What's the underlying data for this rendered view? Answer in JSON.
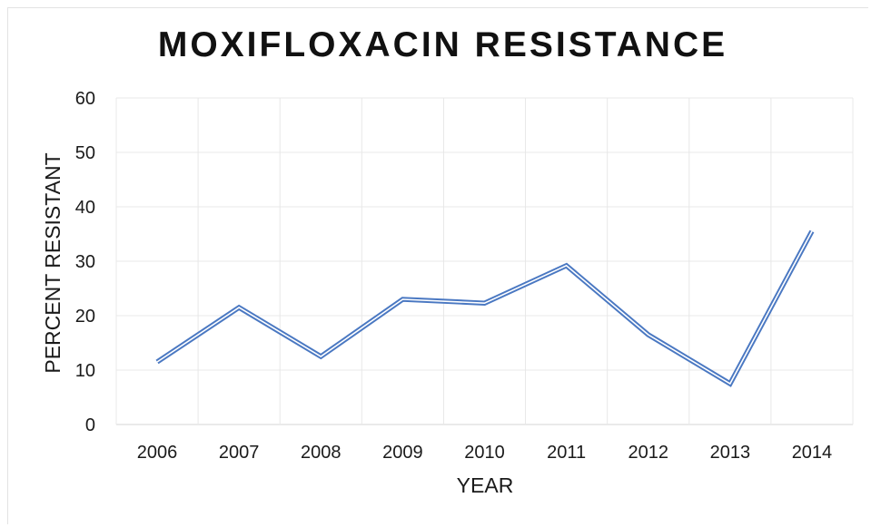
{
  "chart_data": {
    "type": "line",
    "title": "MOXIFLOXACIN RESISTANCE",
    "xlabel": "YEAR",
    "ylabel": "PERCENT RESISTANT",
    "categories": [
      "2006",
      "2007",
      "2008",
      "2009",
      "2010",
      "2011",
      "2012",
      "2013",
      "2014"
    ],
    "y_ticks": [
      "0",
      "10",
      "20",
      "30",
      "40",
      "50",
      "60"
    ],
    "ylim": [
      0,
      60
    ],
    "grid": true,
    "series": [
      {
        "values": [
          11.5,
          21.5,
          12.5,
          23,
          22.3,
          29.2,
          16.5,
          7.5,
          35.5
        ]
      }
    ],
    "colors": {
      "line": "#4a78c2",
      "grid": "#e8e8e8"
    }
  }
}
